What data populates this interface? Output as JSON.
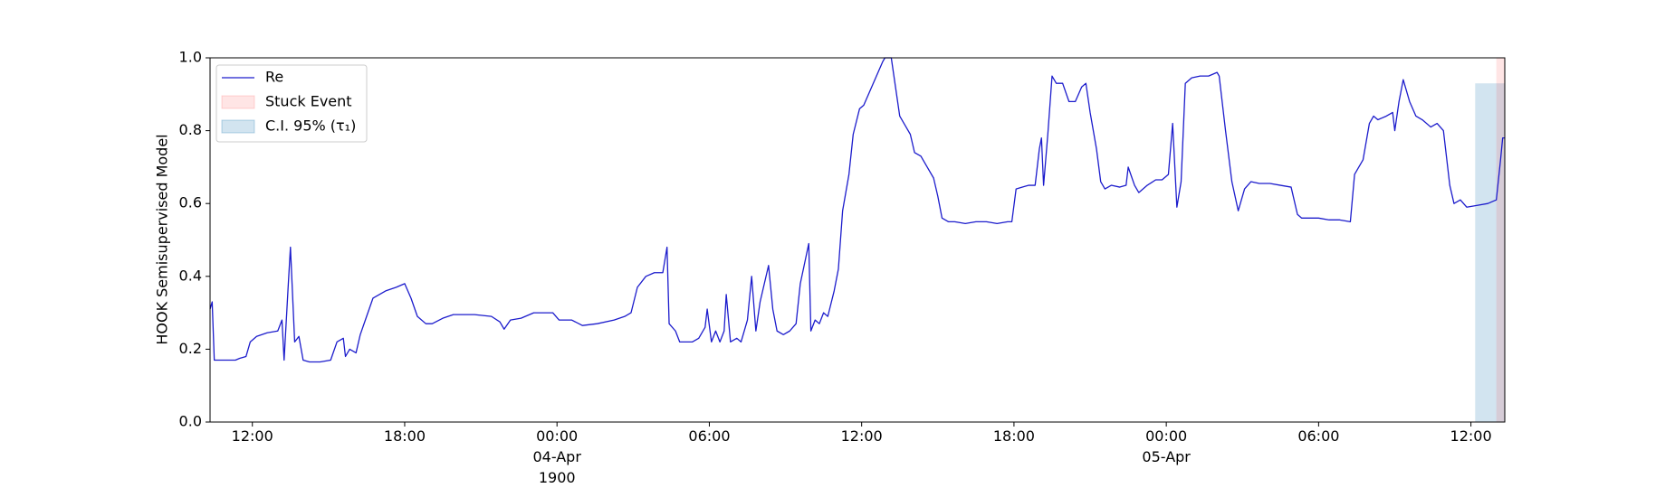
{
  "chart_data": {
    "type": "line",
    "ylabel": "HOOK Semisupervised Model",
    "xlim": [
      "1900-04-03T10:20",
      "1900-04-05T13:20"
    ],
    "xticks": [
      {
        "value": "1900-04-03T12:00",
        "label": "12:00"
      },
      {
        "value": "1900-04-03T18:00",
        "label": "18:00"
      },
      {
        "value": "1900-04-04T00:00",
        "label": "00:00\n04-Apr\n1900"
      },
      {
        "value": "1900-04-04T06:00",
        "label": "06:00"
      },
      {
        "value": "1900-04-04T12:00",
        "label": "12:00"
      },
      {
        "value": "1900-04-04T18:00",
        "label": "18:00"
      },
      {
        "value": "1900-04-05T00:00",
        "label": "00:00\n05-Apr"
      },
      {
        "value": "1900-04-05T06:00",
        "label": "06:00"
      },
      {
        "value": "1900-04-05T12:00",
        "label": "12:00"
      }
    ],
    "ylim": [
      0,
      1
    ],
    "yticks": [
      {
        "value": 0,
        "label": "0.0"
      },
      0.2,
      0.4,
      0.6,
      0.8,
      {
        "value": 1,
        "label": "1.0"
      }
    ],
    "legend": "upper left",
    "series": [
      {
        "name": "Re",
        "color": "#1c1ccc",
        "x": [
          "1900-04-03T10:20",
          "1900-04-03T10:25",
          "1900-04-03T10:30",
          "1900-04-03T10:55",
          "1900-04-03T11:20",
          "1900-04-03T11:30",
          "1900-04-03T11:45",
          "1900-04-03T11:55",
          "1900-04-03T12:10",
          "1900-04-03T12:35",
          "1900-04-03T13:00",
          "1900-04-03T13:10",
          "1900-04-03T13:15",
          "1900-04-03T13:25",
          "1900-04-03T13:30",
          "1900-04-03T13:40",
          "1900-04-03T13:50",
          "1900-04-03T14:00",
          "1900-04-03T14:15",
          "1900-04-03T14:40",
          "1900-04-03T15:05",
          "1900-04-03T15:20",
          "1900-04-03T15:35",
          "1900-04-03T15:40",
          "1900-04-03T15:50",
          "1900-04-03T16:05",
          "1900-04-03T16:15",
          "1900-04-03T16:30",
          "1900-04-03T16:45",
          "1900-04-03T17:15",
          "1900-04-03T17:40",
          "1900-04-03T18:00",
          "1900-04-03T18:15",
          "1900-04-03T18:30",
          "1900-04-03T18:50",
          "1900-04-03T19:05",
          "1900-04-03T19:30",
          "1900-04-03T19:55",
          "1900-04-03T20:45",
          "1900-04-03T21:25",
          "1900-04-03T21:45",
          "1900-04-03T21:55",
          "1900-04-03T22:10",
          "1900-04-03T22:35",
          "1900-04-03T23:05",
          "1900-04-03T23:50",
          "1900-04-04T00:05",
          "1900-04-04T00:35",
          "1900-04-04T01:00",
          "1900-04-04T01:35",
          "1900-04-04T02:15",
          "1900-04-04T02:40",
          "1900-04-04T02:55",
          "1900-04-04T03:10",
          "1900-04-04T03:30",
          "1900-04-04T03:50",
          "1900-04-04T04:10",
          "1900-04-04T04:20",
          "1900-04-04T04:25",
          "1900-04-04T04:40",
          "1900-04-04T04:50",
          "1900-04-04T05:05",
          "1900-04-04T05:20",
          "1900-04-04T05:35",
          "1900-04-04T05:50",
          "1900-04-04T05:55",
          "1900-04-04T06:05",
          "1900-04-04T06:15",
          "1900-04-04T06:25",
          "1900-04-04T06:35",
          "1900-04-04T06:40",
          "1900-04-04T06:50",
          "1900-04-04T07:05",
          "1900-04-04T07:15",
          "1900-04-04T07:30",
          "1900-04-04T07:40",
          "1900-04-04T07:50",
          "1900-04-04T08:00",
          "1900-04-04T08:20",
          "1900-04-04T08:30",
          "1900-04-04T08:40",
          "1900-04-04T08:55",
          "1900-04-04T09:10",
          "1900-04-04T09:25",
          "1900-04-04T09:35",
          "1900-04-04T09:55",
          "1900-04-04T10:00",
          "1900-04-04T10:10",
          "1900-04-04T10:20",
          "1900-04-04T10:30",
          "1900-04-04T10:40",
          "1900-04-04T10:55",
          "1900-04-04T11:05",
          "1900-04-04T11:15",
          "1900-04-04T11:30",
          "1900-04-04T11:40",
          "1900-04-04T11:55",
          "1900-04-04T12:05",
          "1900-04-04T12:20",
          "1900-04-04T12:35",
          "1900-04-04T12:50",
          "1900-04-04T12:55",
          "1900-04-04T13:10",
          "1900-04-04T13:20",
          "1900-04-04T13:30",
          "1900-04-04T13:45",
          "1900-04-04T13:55",
          "1900-04-04T14:05",
          "1900-04-04T14:20",
          "1900-04-04T14:35",
          "1900-04-04T14:50",
          "1900-04-04T15:00",
          "1900-04-04T15:10",
          "1900-04-04T15:25",
          "1900-04-04T15:40",
          "1900-04-04T16:05",
          "1900-04-04T16:30",
          "1900-04-04T16:55",
          "1900-04-04T17:20",
          "1900-04-04T17:45",
          "1900-04-04T17:55",
          "1900-04-04T18:05",
          "1900-04-04T18:20",
          "1900-04-04T18:35",
          "1900-04-04T18:50",
          "1900-04-04T19:00",
          "1900-04-04T19:05",
          "1900-04-04T19:10",
          "1900-04-04T19:20",
          "1900-04-04T19:30",
          "1900-04-04T19:40",
          "1900-04-04T19:55",
          "1900-04-04T20:10",
          "1900-04-04T20:25",
          "1900-04-04T20:40",
          "1900-04-04T20:50",
          "1900-04-04T21:00",
          "1900-04-04T21:15",
          "1900-04-04T21:25",
          "1900-04-04T21:35",
          "1900-04-04T21:50",
          "1900-04-04T22:10",
          "1900-04-04T22:25",
          "1900-04-04T22:30",
          "1900-04-04T22:45",
          "1900-04-04T22:55",
          "1900-04-04T23:15",
          "1900-04-04T23:35",
          "1900-04-04T23:50",
          "1900-04-05T00:05",
          "1900-04-05T00:15",
          "1900-04-05T00:25",
          "1900-04-05T00:35",
          "1900-04-05T00:45",
          "1900-04-05T01:00",
          "1900-04-05T01:20",
          "1900-04-05T01:40",
          "1900-04-05T02:00",
          "1900-04-05T02:05",
          "1900-04-05T02:20",
          "1900-04-05T02:35",
          "1900-04-05T02:50",
          "1900-04-05T03:05",
          "1900-04-05T03:20",
          "1900-04-05T03:40",
          "1900-04-05T04:05",
          "1900-04-05T04:30",
          "1900-04-05T04:55",
          "1900-04-05T05:10",
          "1900-04-05T05:20",
          "1900-04-05T06:00",
          "1900-04-05T06:25",
          "1900-04-05T06:50",
          "1900-04-05T07:15",
          "1900-04-05T07:25",
          "1900-04-05T07:45",
          "1900-04-05T08:00",
          "1900-04-05T08:10",
          "1900-04-05T08:20",
          "1900-04-05T08:40",
          "1900-04-05T08:55",
          "1900-04-05T09:00",
          "1900-04-05T09:10",
          "1900-04-05T09:20",
          "1900-04-05T09:35",
          "1900-04-05T09:50",
          "1900-04-05T10:05",
          "1900-04-05T10:25",
          "1900-04-05T10:40",
          "1900-04-05T10:55",
          "1900-04-05T11:10",
          "1900-04-05T11:20",
          "1900-04-05T11:35",
          "1900-04-05T11:50",
          "1900-04-05T12:15",
          "1900-04-05T12:40",
          "1900-04-05T13:00",
          "1900-04-05T13:10",
          "1900-04-05T13:15",
          "1900-04-05T13:20"
        ],
        "values": [
          0.31,
          0.33,
          0.17,
          0.17,
          0.17,
          0.175,
          0.18,
          0.22,
          0.235,
          0.245,
          0.25,
          0.28,
          0.17,
          0.38,
          0.48,
          0.22,
          0.235,
          0.17,
          0.165,
          0.165,
          0.17,
          0.22,
          0.23,
          0.18,
          0.2,
          0.19,
          0.24,
          0.29,
          0.34,
          0.36,
          0.37,
          0.38,
          0.34,
          0.29,
          0.27,
          0.27,
          0.285,
          0.295,
          0.295,
          0.29,
          0.275,
          0.255,
          0.28,
          0.285,
          0.3,
          0.3,
          0.28,
          0.28,
          0.265,
          0.27,
          0.28,
          0.29,
          0.3,
          0.37,
          0.4,
          0.41,
          0.41,
          0.48,
          0.27,
          0.25,
          0.22,
          0.22,
          0.22,
          0.23,
          0.26,
          0.31,
          0.22,
          0.25,
          0.22,
          0.25,
          0.35,
          0.22,
          0.23,
          0.22,
          0.28,
          0.4,
          0.25,
          0.33,
          0.43,
          0.31,
          0.25,
          0.24,
          0.25,
          0.27,
          0.38,
          0.49,
          0.25,
          0.28,
          0.27,
          0.3,
          0.29,
          0.36,
          0.42,
          0.58,
          0.68,
          0.79,
          0.86,
          0.87,
          0.91,
          0.95,
          0.99,
          1.0,
          1.0,
          0.92,
          0.84,
          0.81,
          0.79,
          0.74,
          0.73,
          0.7,
          0.67,
          0.62,
          0.56,
          0.55,
          0.55,
          0.545,
          0.55,
          0.55,
          0.545,
          0.55,
          0.55,
          0.64,
          0.645,
          0.65,
          0.65,
          0.75,
          0.78,
          0.65,
          0.79,
          0.95,
          0.93,
          0.93,
          0.88,
          0.88,
          0.92,
          0.93,
          0.85,
          0.75,
          0.66,
          0.64,
          0.65,
          0.645,
          0.65,
          0.7,
          0.65,
          0.63,
          0.65,
          0.665,
          0.665,
          0.68,
          0.82,
          0.59,
          0.66,
          0.93,
          0.945,
          0.95,
          0.95,
          0.96,
          0.95,
          0.8,
          0.66,
          0.58,
          0.64,
          0.66,
          0.655,
          0.655,
          0.65,
          0.645,
          0.57,
          0.56,
          0.56,
          0.555,
          0.555,
          0.55,
          0.68,
          0.72,
          0.82,
          0.84,
          0.83,
          0.84,
          0.85,
          0.8,
          0.88,
          0.94,
          0.88,
          0.84,
          0.83,
          0.81,
          0.82,
          0.8,
          0.65,
          0.6,
          0.61,
          0.59,
          0.595,
          0.6,
          0.61,
          0.72,
          0.78,
          0.78
        ]
      }
    ],
    "spans": [
      {
        "name": "Stuck Event",
        "color": "#ff0000",
        "opacity": 0.1,
        "start": "1900-04-05T13:00",
        "end": "1900-04-05T13:20"
      },
      {
        "name": "C.I. 95% (τ₁)",
        "color": "#1f77b4",
        "opacity": 0.2,
        "start": "1900-04-05T12:10",
        "end": "1900-04-05T13:20",
        "top": 0.93
      }
    ]
  }
}
